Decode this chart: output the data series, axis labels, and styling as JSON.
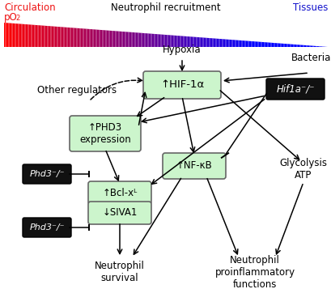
{
  "fig_width": 4.1,
  "fig_height": 3.57,
  "dpi": 100,
  "box_green_fill": "#ccf5cc",
  "box_green_edge": "#666666",
  "box_black_fill": "#111111",
  "box_black_edge": "#000000",
  "text_white": "#ffffff",
  "text_black": "#000000",
  "text_red": "#ee1111",
  "text_blue": "#1111cc",
  "circulation_text": "Circulation",
  "pO2_text": "pO",
  "neutrophil_recruit_text": "Neutrophil recruitment",
  "tissues_text": "Tissues",
  "hypoxia_text": "Hypoxia",
  "bacteria_text": "Bacteria",
  "other_reg_text": "Other regulators",
  "glycolysis_text": "Glycolysis\nATP",
  "neutrophil_survival_text": "Neutrophil\nsurvival",
  "neutrophil_proinflam_text": "Neutrophil\nproinflammatory\nfunctions",
  "hif_text": "↑HIF-1α",
  "hif1a_ko_text": "Hif1a⁻/⁻",
  "phd3_text": "↑PHD3\nexpression",
  "nfkb_text": "↑NF-κB",
  "bcl_text": "↑Bcl-xᴸ",
  "siva_text": "↓SIVA1",
  "phd3_ko1_text": "Phd3⁻/⁻",
  "phd3_ko2_text": "Phd3⁻/⁻"
}
